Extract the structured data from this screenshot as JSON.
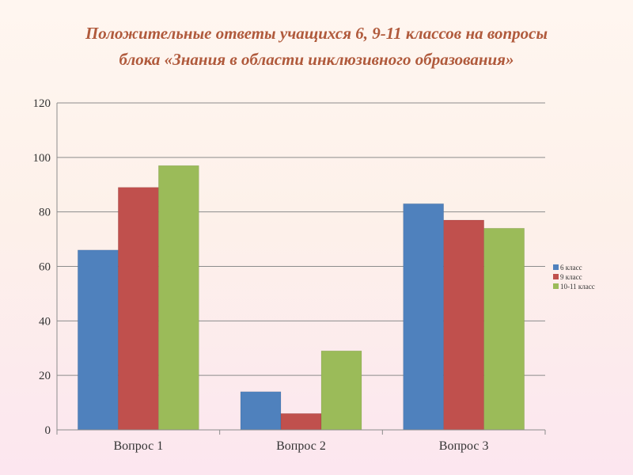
{
  "title": {
    "line1": "Положительные ответы учащихся 6, 9-11 классов на вопросы",
    "line2": "блока «Знания в области инклюзивного образования»"
  },
  "colors": {
    "title": "#b05a3c",
    "grid": "#8c8c8c",
    "series": [
      "#4f81bd",
      "#c0504d",
      "#9bbb59"
    ]
  },
  "chart_data": {
    "type": "bar",
    "title": "Положительные ответы учащихся 6, 9-11 классов на вопросы блока «Знания в области инклюзивного образования»",
    "categories": [
      "Вопрос 1",
      "Вопрос 2",
      "Вопрос 3"
    ],
    "series": [
      {
        "name": "6 класс",
        "values": [
          66,
          14,
          83
        ]
      },
      {
        "name": "9 класс",
        "values": [
          89,
          6,
          77
        ]
      },
      {
        "name": "10-11 класс",
        "values": [
          97,
          29,
          74
        ]
      }
    ],
    "ylim": [
      0,
      120
    ],
    "yticks": [
      0,
      20,
      40,
      60,
      80,
      100,
      120
    ],
    "grid": true,
    "legend": "right"
  }
}
